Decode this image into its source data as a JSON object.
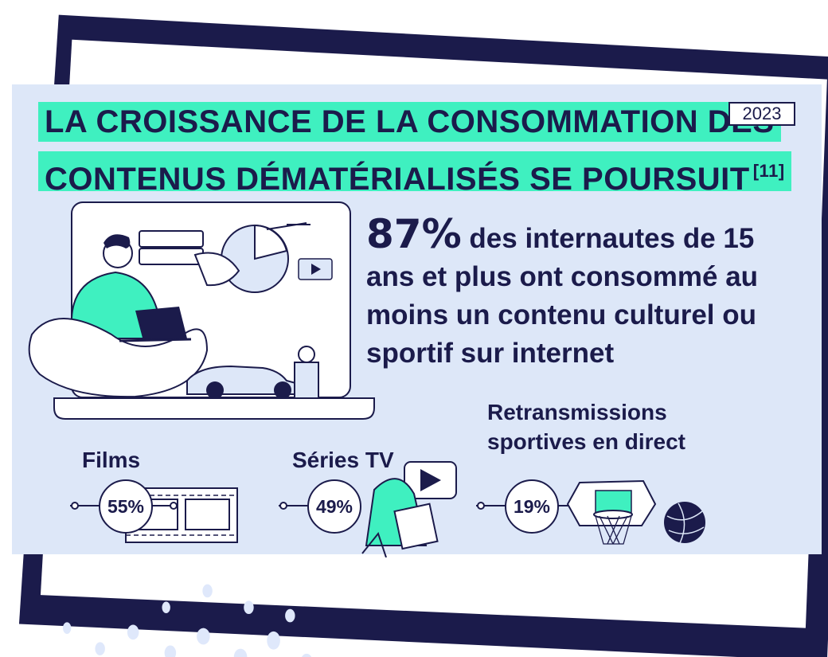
{
  "title": {
    "line1": "LA CROISSANCE DE LA CONSOMMATION DES",
    "line2": "CONTENUS DÉMATÉRIALISÉS SE POURSUIT",
    "reference": "[11]"
  },
  "year": "2023",
  "headline": {
    "percent": "87%",
    "text": " des internautes de 15 ans et plus ont consommé au moins un contenu culturel ou sportif sur internet"
  },
  "categories": [
    {
      "label": "Films",
      "percent": "55%",
      "value": 55
    },
    {
      "label": "Séries TV",
      "percent": "49%",
      "value": 49
    },
    {
      "label_line1": "Retransmissions",
      "label_line2": "sportives en direct",
      "percent": "19%",
      "value": 19
    }
  ],
  "colors": {
    "navy": "#1b1b4b",
    "mint": "#3ff0c0",
    "panel": "#dde7f8",
    "dots": "#dfe8fb"
  },
  "icons": [
    "laptop-user-illustration",
    "film-strip-icon",
    "play-button-icon",
    "basketball-hoop-icon",
    "basketball-icon"
  ]
}
